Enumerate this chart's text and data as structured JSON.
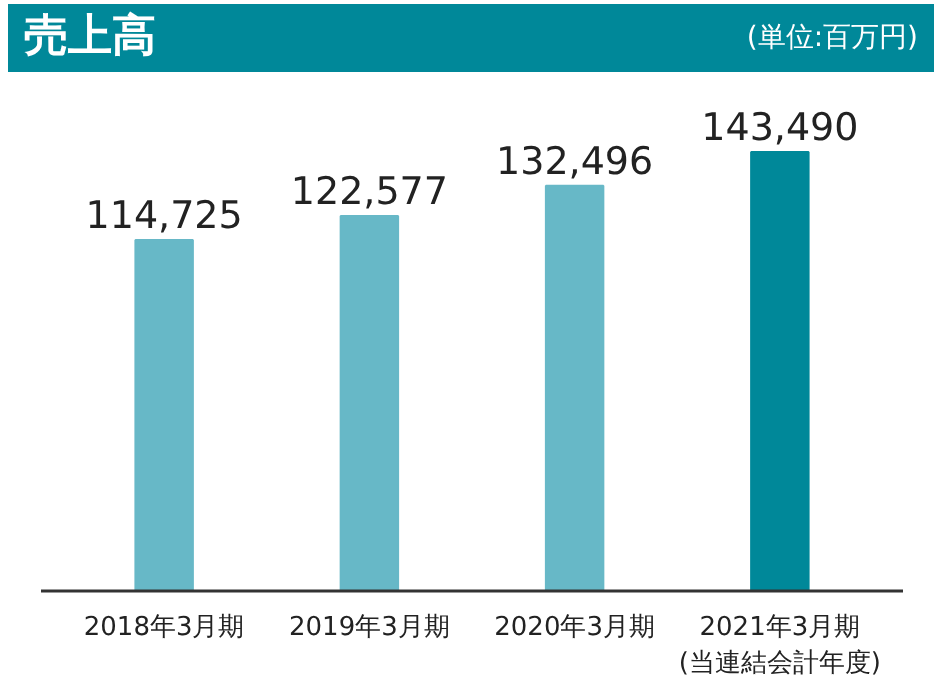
{
  "chart_data": {
    "type": "bar",
    "title": "売上高",
    "subtitle": "(単位:百万円)",
    "categories": [
      "2018年3月期",
      "2019年3月期",
      "2020年3月期",
      "2021年3月期\n(当連結会計年度)"
    ],
    "values": [
      114725,
      122577,
      132496,
      143490
    ],
    "colors": [
      "#67b8c7",
      "#67b8c7",
      "#67b8c7",
      "#008899"
    ],
    "value_labels": [
      "114,725",
      "122,577",
      "132,496",
      "143,490"
    ],
    "tick_labels": "x",
    "grid": false
  }
}
